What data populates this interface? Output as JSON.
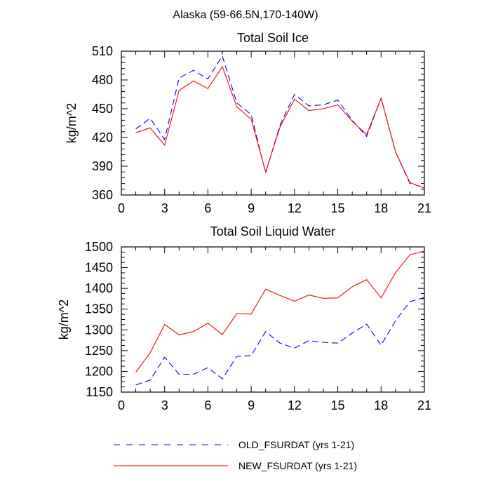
{
  "figure_title": "Alaska (59-66.5N,170-140W)",
  "legend": {
    "old_label": "OLD_FSURDAT (yrs 1-21)",
    "new_label": "NEW_FSURDAT (yrs 1-21)",
    "old_color": "#0000ff",
    "new_color": "#ff0000"
  },
  "chart_data": [
    {
      "type": "line",
      "title": "Total Soil Ice",
      "xlabel": "",
      "ylabel": "kg/m^2",
      "xlim": [
        0,
        21
      ],
      "ylim": [
        360,
        510
      ],
      "xticks": [
        0,
        3,
        6,
        9,
        12,
        15,
        18,
        21
      ],
      "yticks": [
        360,
        390,
        420,
        450,
        480,
        510
      ],
      "x": [
        1,
        2,
        3,
        4,
        5,
        6,
        7,
        8,
        9,
        10,
        11,
        12,
        13,
        14,
        15,
        16,
        17,
        18,
        19,
        20,
        21
      ],
      "series": [
        {
          "name": "OLD_FSURDAT (yrs 1-21)",
          "color": "#0000ff",
          "dash": true,
          "values": [
            429,
            440,
            418,
            482,
            490,
            481,
            505,
            456,
            444,
            383,
            433,
            465,
            453,
            454,
            459,
            438,
            421,
            461,
            405,
            372,
            368
          ]
        },
        {
          "name": "NEW_FSURDAT (yrs 1-21)",
          "color": "#ff0000",
          "dash": false,
          "values": [
            425,
            430,
            412,
            469,
            479,
            471,
            494,
            452,
            439,
            384,
            431,
            460,
            448,
            450,
            454,
            437,
            423,
            461,
            405,
            373,
            367
          ]
        }
      ]
    },
    {
      "type": "line",
      "title": "Total Soil Liquid Water",
      "xlabel": "",
      "ylabel": "kg/m^2",
      "xlim": [
        0,
        21
      ],
      "ylim": [
        1150,
        1500
      ],
      "xticks": [
        0,
        3,
        6,
        9,
        12,
        15,
        18,
        21
      ],
      "yticks": [
        1150,
        1200,
        1250,
        1300,
        1350,
        1400,
        1450,
        1500
      ],
      "x": [
        1,
        2,
        3,
        4,
        5,
        6,
        7,
        8,
        9,
        10,
        11,
        12,
        13,
        14,
        15,
        16,
        17,
        18,
        19,
        20,
        21
      ],
      "series": [
        {
          "name": "OLD_FSURDAT (yrs 1-21)",
          "color": "#0000ff",
          "dash": true,
          "values": [
            1167,
            1179,
            1234,
            1193,
            1193,
            1209,
            1182,
            1236,
            1238,
            1296,
            1268,
            1256,
            1274,
            1270,
            1268,
            1292,
            1314,
            1263,
            1322,
            1368,
            1378
          ]
        },
        {
          "name": "NEW_FSURDAT (yrs 1-21)",
          "color": "#ff0000",
          "dash": false,
          "values": [
            1198,
            1245,
            1313,
            1288,
            1296,
            1316,
            1289,
            1339,
            1338,
            1398,
            1383,
            1369,
            1384,
            1376,
            1377,
            1404,
            1421,
            1377,
            1438,
            1481,
            1490
          ]
        }
      ]
    }
  ]
}
